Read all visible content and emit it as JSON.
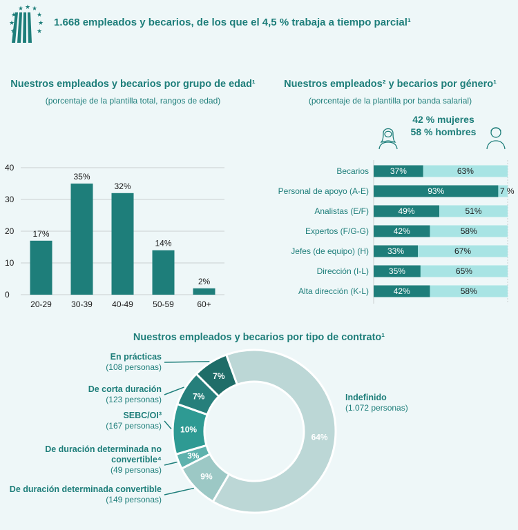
{
  "headline": "1.668 empleados y becarios, de los que el 4,5 % trabaja a tiempo parcial¹",
  "age_chart": {
    "title": "Nuestros empleados y becarios por grupo de edad¹",
    "subtitle": "(porcentaje de la plantilla total, rangos de edad)"
  },
  "gender_chart": {
    "title": "Nuestros empleados² y becarios por género¹",
    "subtitle": "(porcentaje de la plantilla por banda salarial)",
    "women_legend": "42 % mujeres",
    "men_legend": "58 % hombres"
  },
  "contract_chart": {
    "title": "Nuestros empleados y becarios por tipo de contrato¹"
  },
  "colors": {
    "primary": "#1e7e7a",
    "light": "#a8e4e4",
    "background": "#eef7f8"
  },
  "chart_data": [
    {
      "type": "bar",
      "categories": [
        "20-29",
        "30-39",
        "40-49",
        "50-59",
        "60+"
      ],
      "values": [
        17,
        35,
        32,
        14,
        2
      ],
      "data_labels": [
        "17%",
        "35%",
        "32%",
        "14%",
        "2%"
      ],
      "yticks": [
        "0",
        "10",
        "20",
        "30",
        "40"
      ],
      "ylim": [
        0,
        40
      ],
      "grid": true
    },
    {
      "type": "bar",
      "orientation": "horizontal-stacked",
      "categories": [
        "Becarios",
        "Personal de apoyo (A-E)",
        "Analistas (E/F)",
        "Expertos (F/G-G)",
        "Jefes (de equipo) (H)",
        "Dirección (I-L)",
        "Alta dirección (K-L)"
      ],
      "series": [
        {
          "values": [
            37,
            93,
            49,
            42,
            33,
            35,
            42
          ],
          "labels": [
            "37%",
            "93%",
            "49%",
            "42%",
            "33%",
            "35%",
            "42%"
          ]
        },
        {
          "values": [
            63,
            7,
            51,
            58,
            67,
            65,
            58
          ],
          "labels": [
            "63%",
            "7 %",
            "51%",
            "58%",
            "67%",
            "65%",
            "58%"
          ]
        }
      ]
    },
    {
      "type": "pie",
      "style": "donut",
      "slices": [
        {
          "label": "Indefinido",
          "detail": "(1.072 personas)",
          "value": 64,
          "pct_label": "64%"
        },
        {
          "label": "De duración determinada convertible",
          "detail": "(149 personas)",
          "value": 9,
          "pct_label": "9%"
        },
        {
          "label": "De duración determinada no convertible⁴",
          "detail": "(49 personas)",
          "value": 3,
          "pct_label": "3%"
        },
        {
          "label": "SEBC/OI³",
          "detail": "(167 personas)",
          "value": 10,
          "pct_label": "10%"
        },
        {
          "label": "De corta duración",
          "detail": "(123 personas)",
          "value": 7,
          "pct_label": "7%"
        },
        {
          "label": "En prácticas",
          "detail": "(108 personas)",
          "value": 7,
          "pct_label": "7%"
        }
      ]
    }
  ]
}
